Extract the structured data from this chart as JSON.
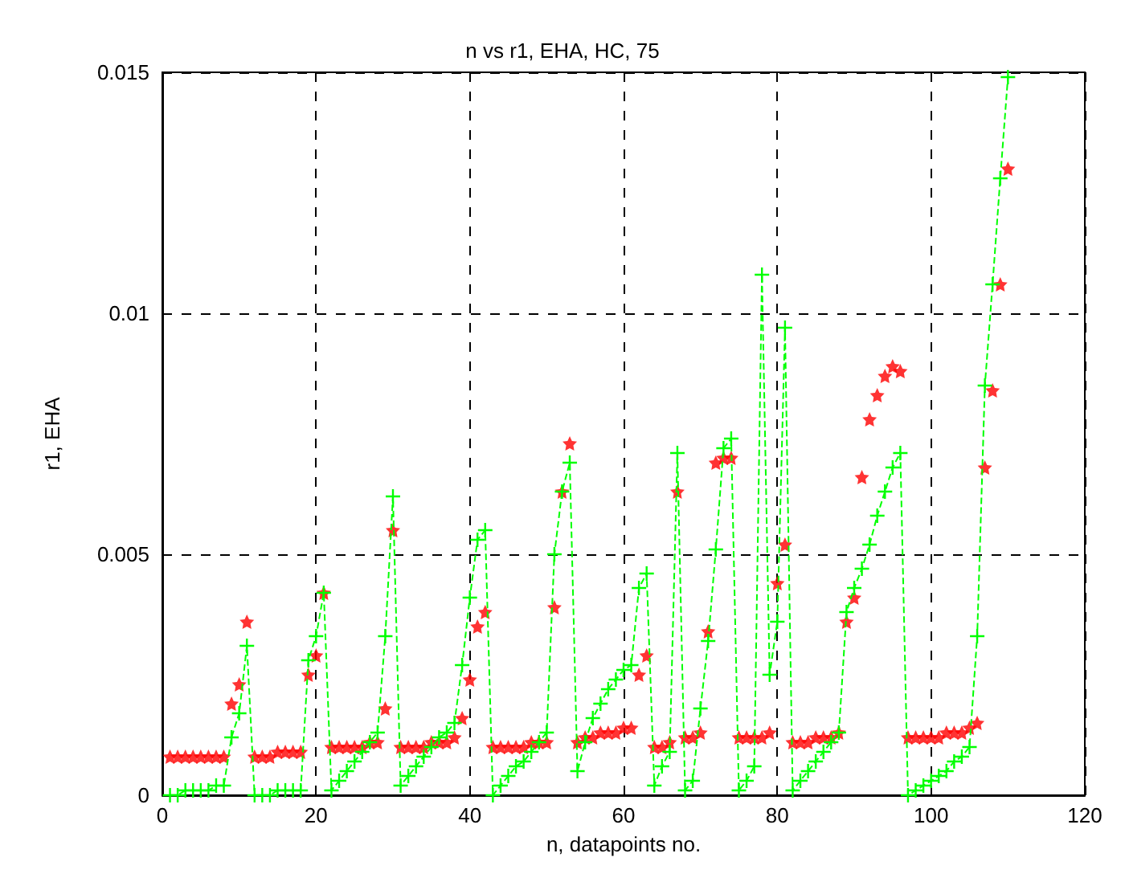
{
  "chart_data": {
    "type": "line",
    "title": "n vs r1, EHA, HC, 75",
    "xlabel": "n, datapoints no.",
    "ylabel": "r1, EHA",
    "x": [
      1,
      2,
      3,
      4,
      5,
      6,
      7,
      8,
      9,
      10,
      11,
      12,
      13,
      14,
      15,
      16,
      17,
      18,
      19,
      20,
      21,
      22,
      23,
      24,
      25,
      26,
      27,
      28,
      29,
      30,
      31,
      32,
      33,
      34,
      35,
      36,
      37,
      38,
      39,
      40,
      41,
      42,
      43,
      44,
      45,
      46,
      47,
      48,
      49,
      50,
      51,
      52,
      53,
      54,
      55,
      56,
      57,
      58,
      59,
      60,
      61,
      62,
      63,
      64,
      65,
      66,
      67,
      68,
      69,
      70,
      71,
      72,
      73,
      74,
      75,
      76,
      77,
      78,
      79,
      80,
      81,
      82,
      83,
      84,
      85,
      86,
      87,
      88,
      89,
      90,
      91,
      92,
      93,
      94,
      95,
      96,
      97,
      98,
      99,
      100,
      101,
      102,
      103,
      104,
      105,
      106,
      107,
      108,
      109,
      110
    ],
    "series": [
      {
        "type": "scatter",
        "color": "#ff0000",
        "marker": "star",
        "values": [
          0.0008,
          0.0008,
          0.0008,
          0.0008,
          0.0008,
          0.0008,
          0.0008,
          0.0008,
          0.0019,
          0.0023,
          0.0036,
          0.0008,
          0.0008,
          0.0008,
          0.0009,
          0.0009,
          0.0009,
          0.0009,
          0.0025,
          0.0029,
          0.0042,
          0.001,
          0.001,
          0.001,
          0.001,
          0.001,
          0.0011,
          0.0011,
          0.0018,
          0.0055,
          0.001,
          0.001,
          0.001,
          0.001,
          0.0011,
          0.0011,
          0.0011,
          0.0012,
          0.0016,
          0.0024,
          0.0035,
          0.0038,
          0.001,
          0.001,
          0.001,
          0.001,
          0.001,
          0.0011,
          0.0011,
          0.0011,
          0.0039,
          0.0063,
          0.0073,
          0.0011,
          0.0012,
          0.0012,
          0.0013,
          0.0013,
          0.0013,
          0.0014,
          0.0014,
          0.0025,
          0.0029,
          0.001,
          0.001,
          0.0011,
          0.0063,
          0.0012,
          0.0012,
          0.0013,
          0.0034,
          0.0069,
          0.007,
          0.007,
          0.0012,
          0.0012,
          0.0012,
          0.0012,
          0.0013,
          0.0044,
          0.0052,
          0.0011,
          0.0011,
          0.0011,
          0.0012,
          0.0012,
          0.0012,
          0.0013,
          0.0036,
          0.0041,
          0.0066,
          0.0078,
          0.0083,
          0.0087,
          0.0089,
          0.0088,
          0.0012,
          0.0012,
          0.0012,
          0.0012,
          0.0012,
          0.0013,
          0.0013,
          0.0013,
          0.0014,
          0.0015,
          0.0068,
          0.0084,
          0.0106,
          0.013
        ]
      },
      {
        "color": "#00ff00",
        "marker": "cross",
        "line_style": "dashed",
        "values": [
          0,
          0,
          0.0001,
          0.0001,
          0.0001,
          0.0001,
          0.0002,
          0.0002,
          0.0012,
          0.0017,
          0.0031,
          0,
          0,
          0,
          0.0001,
          0.0001,
          0.0001,
          0.0001,
          0.0028,
          0.0033,
          0.0042,
          0.0001,
          0.0003,
          0.0005,
          0.0007,
          0.0009,
          0.0011,
          0.0013,
          0.0033,
          0.0062,
          0.0002,
          0.0004,
          0.0006,
          0.0008,
          0.001,
          0.0012,
          0.0013,
          0.0015,
          0.0027,
          0.0041,
          0.0053,
          0.0055,
          0,
          0.0002,
          0.0004,
          0.0006,
          0.0007,
          0.0009,
          0.0011,
          0.0013,
          0.005,
          0.0063,
          0.0069,
          0.0005,
          0.0011,
          0.0016,
          0.0019,
          0.0022,
          0.0024,
          0.0026,
          0.0027,
          0.0043,
          0.0046,
          0.0002,
          0.0006,
          0.0009,
          0.0071,
          0.0001,
          0.0003,
          0.0018,
          0.0032,
          0.0051,
          0.0072,
          0.0074,
          0.0001,
          0.0003,
          0.0006,
          0.0108,
          0.0025,
          0.0036,
          0.0097,
          0.0001,
          0.0003,
          0.0005,
          0.0007,
          0.0009,
          0.0011,
          0.0013,
          0.0038,
          0.0043,
          0.0047,
          0.0052,
          0.0058,
          0.0063,
          0.0068,
          0.0071,
          0,
          0.0001,
          0.0002,
          0.0003,
          0.0004,
          0.0005,
          0.0007,
          0.0008,
          0.001,
          0.0033,
          0.0085,
          0.0106,
          0.0128,
          0.0149
        ]
      }
    ],
    "xlim": [
      0,
      120
    ],
    "xticks": [
      0,
      20,
      40,
      60,
      80,
      100,
      120
    ],
    "ylim": [
      0,
      0.015
    ],
    "yticks": [
      0,
      0.005,
      0.01,
      0.015
    ],
    "grid": true
  }
}
